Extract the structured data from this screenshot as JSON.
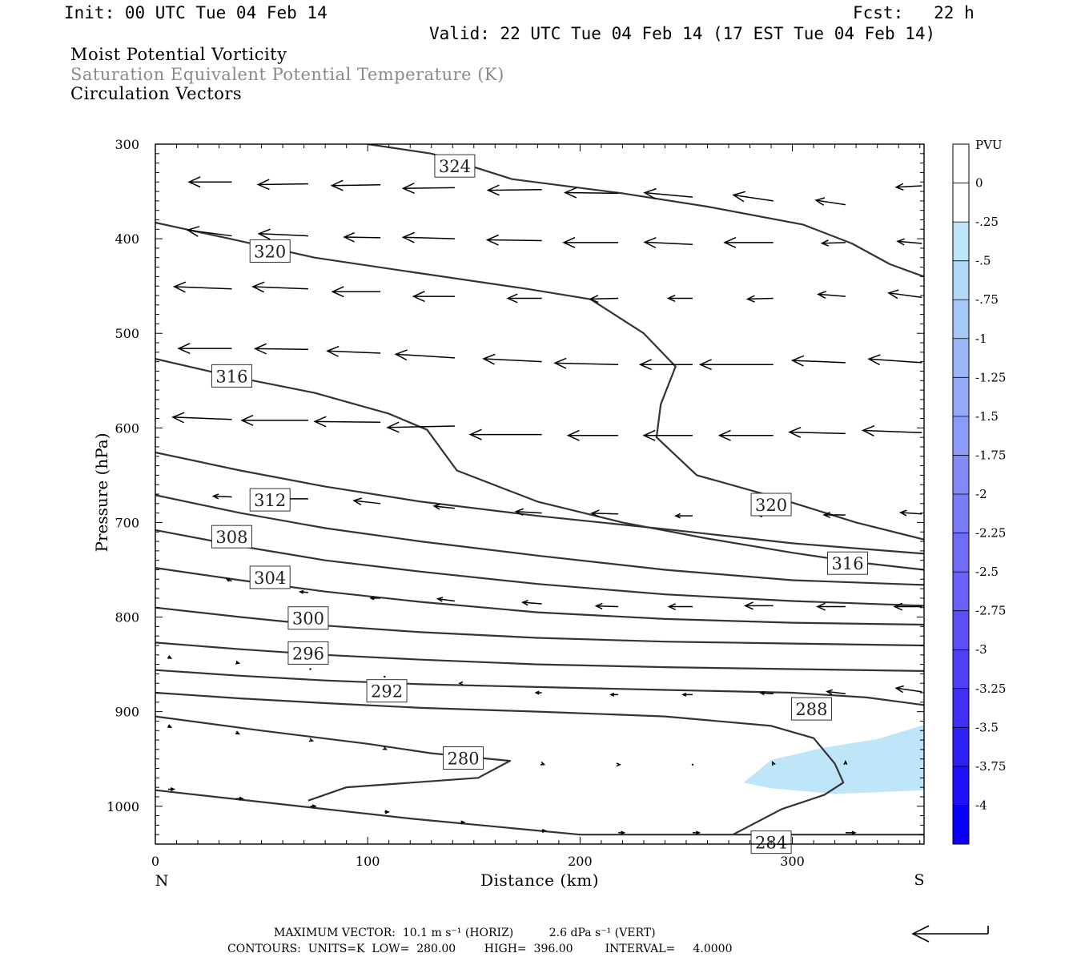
{
  "header": {
    "init": "Init: 00 UTC Tue 04 Feb 14",
    "fcst": "Fcst:   22 h",
    "valid": "Valid: 22 UTC Tue 04 Feb 14 (17 EST Tue 04 Feb 14)"
  },
  "titles": {
    "line1": "Moist Potential Vorticity",
    "line2": "Saturation Equivalent Potential Temperature (K)",
    "line3": "Circulation Vectors"
  },
  "footer": {
    "max_vector": "MAXIMUM VECTOR:  10.1 m s⁻¹ (HORIZ)          2.6 dPa s⁻¹ (VERT)",
    "contours": "CONTOURS:  UNITS=K  LOW=  280.00        HIGH=  396.00         INTERVAL=     4.0000"
  },
  "chart_data": {
    "type": "cross-section",
    "xlabel": "Distance (km)",
    "ylabel": "Pressure (hPa)",
    "x_ticks": [
      0,
      100,
      200,
      300
    ],
    "y_ticks": [
      300,
      400,
      500,
      600,
      700,
      800,
      900,
      1000
    ],
    "xlim": [
      0,
      362
    ],
    "ylim": [
      300,
      1040
    ],
    "y_axis": "pressure, increasing downward",
    "end_labels": {
      "left": "N",
      "right": "S"
    },
    "colorbar": {
      "title": "PVU",
      "labels": [
        "0",
        "-.25",
        "-.5",
        "-.75",
        "-1",
        "-1.25",
        "-1.5",
        "-1.75",
        "-2",
        "-2.25",
        "-2.5",
        "-2.75",
        "-3",
        "-3.25",
        "-3.5",
        "-3.75",
        "-4"
      ],
      "colors": [
        "#ffffff",
        "#bfe6f8",
        "#b1d8f8",
        "#a6c8f8",
        "#9cb8f8",
        "#94aaf8",
        "#8b9bf8",
        "#828af8",
        "#7a7cf8",
        "#716cf8",
        "#6860f8",
        "#5c50f8",
        "#4f40f8",
        "#4030f8",
        "#3020f8",
        "#2010f8",
        "#0a00f8"
      ]
    },
    "negative_pv_region": {
      "value_range_pvu": [
        -0.25,
        0
      ],
      "polygon": [
        [
          277,
          975
        ],
        [
          290,
          951
        ],
        [
          315,
          938
        ],
        [
          340,
          929
        ],
        [
          362,
          914
        ],
        [
          362,
          983
        ],
        [
          320,
          987
        ],
        [
          290,
          981
        ]
      ]
    },
    "contours": [
      {
        "label": "324",
        "points": [
          [
            100,
            300
          ],
          [
            130,
            310
          ],
          [
            168,
            337
          ],
          [
            220,
            352
          ],
          [
            260,
            366
          ],
          [
            305,
            385
          ],
          [
            328,
            405
          ],
          [
            346,
            427
          ],
          [
            362,
            440
          ]
        ]
      },
      {
        "label": "320",
        "points": [
          [
            0,
            383
          ],
          [
            35,
            400
          ],
          [
            75,
            420
          ],
          [
            120,
            435
          ],
          [
            175,
            453
          ],
          [
            205,
            464
          ],
          [
            230,
            500
          ],
          [
            245,
            535
          ],
          [
            238,
            575
          ],
          [
            236,
            610
          ],
          [
            255,
            650
          ],
          [
            290,
            672
          ],
          [
            330,
            700
          ],
          [
            362,
            718
          ]
        ]
      },
      {
        "label": "316",
        "points": [
          [
            0,
            527
          ],
          [
            35,
            545
          ],
          [
            75,
            563
          ],
          [
            110,
            585
          ],
          [
            128,
            602
          ],
          [
            142,
            645
          ],
          [
            180,
            678
          ],
          [
            220,
            700
          ],
          [
            260,
            717
          ],
          [
            300,
            732
          ],
          [
            330,
            742
          ],
          [
            362,
            750
          ]
        ]
      },
      {
        "label": "312",
        "points": [
          [
            0,
            626
          ],
          [
            40,
            645
          ],
          [
            80,
            662
          ],
          [
            125,
            678
          ],
          [
            180,
            693
          ],
          [
            240,
            707
          ],
          [
            300,
            722
          ],
          [
            362,
            733
          ]
        ]
      },
      {
        "label": "308",
        "points": [
          [
            0,
            671
          ],
          [
            40,
            690
          ],
          [
            80,
            706
          ],
          [
            125,
            720
          ],
          [
            180,
            735
          ],
          [
            240,
            750
          ],
          [
            300,
            761
          ],
          [
            362,
            766
          ]
        ]
      },
      {
        "label": "304",
        "points": [
          [
            0,
            708
          ],
          [
            40,
            725
          ],
          [
            80,
            740
          ],
          [
            125,
            752
          ],
          [
            180,
            765
          ],
          [
            240,
            776
          ],
          [
            300,
            783
          ],
          [
            362,
            788
          ]
        ]
      },
      {
        "label": "300",
        "points": [
          [
            0,
            748
          ],
          [
            40,
            761
          ],
          [
            80,
            773
          ],
          [
            125,
            784
          ],
          [
            180,
            795
          ],
          [
            240,
            802
          ],
          [
            300,
            806
          ],
          [
            362,
            808
          ]
        ]
      },
      {
        "label": "296",
        "points": [
          [
            0,
            790
          ],
          [
            40,
            800
          ],
          [
            80,
            809
          ],
          [
            125,
            816
          ],
          [
            180,
            822
          ],
          [
            240,
            826
          ],
          [
            300,
            828
          ],
          [
            362,
            830
          ]
        ]
      },
      {
        "label": "292",
        "points": [
          [
            0,
            827
          ],
          [
            40,
            834
          ],
          [
            80,
            840
          ],
          [
            125,
            845
          ],
          [
            180,
            850
          ],
          [
            240,
            853
          ],
          [
            300,
            855
          ],
          [
            362,
            857
          ]
        ]
      },
      {
        "label": "288",
        "points": [
          [
            0,
            856
          ],
          [
            40,
            862
          ],
          [
            80,
            867
          ],
          [
            125,
            871
          ],
          [
            180,
            874
          ],
          [
            240,
            877
          ],
          [
            300,
            880
          ],
          [
            335,
            885
          ],
          [
            362,
            893
          ]
        ]
      },
      {
        "label": "284",
        "points": [
          [
            0,
            880
          ],
          [
            40,
            886
          ],
          [
            80,
            891
          ],
          [
            125,
            896
          ],
          [
            180,
            900
          ],
          [
            240,
            905
          ],
          [
            290,
            915
          ],
          [
            310,
            928
          ],
          [
            320,
            955
          ],
          [
            324,
            975
          ],
          [
            315,
            988
          ],
          [
            295,
            1003
          ],
          [
            272,
            1030
          ]
        ]
      },
      {
        "label": "280",
        "points": [
          [
            0,
            905
          ],
          [
            50,
            920
          ],
          [
            100,
            934
          ],
          [
            130,
            944
          ],
          [
            167,
            952
          ],
          [
            152,
            970
          ],
          [
            90,
            980
          ],
          [
            72,
            994
          ]
        ]
      },
      {
        "label": "",
        "points": [
          [
            0,
            983
          ],
          [
            60,
            998
          ],
          [
            120,
            1013
          ],
          [
            200,
            1030
          ],
          [
            362,
            1030
          ]
        ]
      }
    ],
    "contour_labels": [
      {
        "text": "324",
        "x": 141,
        "p": 323
      },
      {
        "text": "320",
        "x": 54,
        "p": 413
      },
      {
        "text": "320",
        "x": 290,
        "p": 681
      },
      {
        "text": "316",
        "x": 36,
        "p": 545
      },
      {
        "text": "316",
        "x": 326,
        "p": 743
      },
      {
        "text": "312",
        "x": 54,
        "p": 676
      },
      {
        "text": "308",
        "x": 36,
        "p": 715
      },
      {
        "text": "304",
        "x": 54,
        "p": 758
      },
      {
        "text": "300",
        "x": 72,
        "p": 801
      },
      {
        "text": "296",
        "x": 72,
        "p": 838
      },
      {
        "text": "292",
        "x": 109,
        "p": 878
      },
      {
        "text": "288",
        "x": 309,
        "p": 897
      },
      {
        "text": "284",
        "x": 290,
        "p": 1038
      },
      {
        "text": "280",
        "x": 145,
        "p": 949
      }
    ],
    "vectors": [
      {
        "x": 36,
        "p": 340,
        "u": -5.8,
        "w": 0
      },
      {
        "x": 72,
        "p": 342,
        "u": -6.8,
        "w": -0.1
      },
      {
        "x": 106,
        "p": 343,
        "u": -6.6,
        "w": -0.1
      },
      {
        "x": 141,
        "p": 346,
        "u": -7.0,
        "w": -0.1
      },
      {
        "x": 182,
        "p": 348,
        "u": -7.3,
        "w": -0.1
      },
      {
        "x": 218,
        "p": 352,
        "u": -7.2,
        "w": 0.1
      },
      {
        "x": 253,
        "p": 356,
        "u": -6.5,
        "w": 0.6
      },
      {
        "x": 291,
        "p": 360,
        "u": -5.4,
        "w": 0.8
      },
      {
        "x": 325,
        "p": 364,
        "u": -4.0,
        "w": 0.6
      },
      {
        "x": 361,
        "p": 344,
        "u": -3.5,
        "w": -0.2
      },
      {
        "x": 36,
        "p": 397,
        "u": -6.0,
        "w": 0.8
      },
      {
        "x": 72,
        "p": 397,
        "u": -6.7,
        "w": 0.3
      },
      {
        "x": 106,
        "p": 399,
        "u": -4.9,
        "w": 0.1
      },
      {
        "x": 141,
        "p": 400,
        "u": -7.0,
        "w": 0.2
      },
      {
        "x": 182,
        "p": 402,
        "u": -7.4,
        "w": 0.1
      },
      {
        "x": 218,
        "p": 404,
        "u": -7.4,
        "w": 0
      },
      {
        "x": 253,
        "p": 406,
        "u": -6.5,
        "w": 0.3
      },
      {
        "x": 291,
        "p": 404,
        "u": -6.6,
        "w": 0
      },
      {
        "x": 325,
        "p": 404,
        "u": -3.2,
        "w": -0.1
      },
      {
        "x": 361,
        "p": 405,
        "u": -3.3,
        "w": 0.3
      },
      {
        "x": 36,
        "p": 453,
        "u": -7.8,
        "w": 0.3
      },
      {
        "x": 72,
        "p": 453,
        "u": -7.5,
        "w": 0.3
      },
      {
        "x": 106,
        "p": 456,
        "u": -6.5,
        "w": 0
      },
      {
        "x": 141,
        "p": 461,
        "u": -5.6,
        "w": 0
      },
      {
        "x": 182,
        "p": 463,
        "u": -4.6,
        "w": 0
      },
      {
        "x": 218,
        "p": 463,
        "u": -3.8,
        "w": -0.1
      },
      {
        "x": 253,
        "p": 463,
        "u": -3.3,
        "w": 0
      },
      {
        "x": 291,
        "p": 463,
        "u": -3.5,
        "w": -0.1
      },
      {
        "x": 325,
        "p": 461,
        "u": -3.7,
        "w": 0.3
      },
      {
        "x": 361,
        "p": 462,
        "u": -4.5,
        "w": 0.6
      },
      {
        "x": 36,
        "p": 516,
        "u": -7.2,
        "w": 0
      },
      {
        "x": 72,
        "p": 517,
        "u": -7.2,
        "w": 0.1
      },
      {
        "x": 106,
        "p": 521,
        "u": -7.2,
        "w": 0.3
      },
      {
        "x": 141,
        "p": 526,
        "u": -8.0,
        "w": 0.5
      },
      {
        "x": 182,
        "p": 530,
        "u": -7.9,
        "w": 0.4
      },
      {
        "x": 218,
        "p": 533,
        "u": -8.6,
        "w": 0.2
      },
      {
        "x": 253,
        "p": 533,
        "u": -7.1,
        "w": 0
      },
      {
        "x": 291,
        "p": 533,
        "u": -9.9,
        "w": 0
      },
      {
        "x": 325,
        "p": 531,
        "u": -7.2,
        "w": 0.3
      },
      {
        "x": 361,
        "p": 531,
        "u": -7.2,
        "w": 0.5
      },
      {
        "x": 36,
        "p": 591,
        "u": -8.0,
        "w": 0.3
      },
      {
        "x": 72,
        "p": 592,
        "u": -9.0,
        "w": 0
      },
      {
        "x": 106,
        "p": 594,
        "u": -8.9,
        "w": 0.1
      },
      {
        "x": 141,
        "p": 598,
        "u": -9.1,
        "w": -0.2
      },
      {
        "x": 182,
        "p": 607,
        "u": -9.7,
        "w": 0
      },
      {
        "x": 218,
        "p": 608,
        "u": -6.8,
        "w": 0
      },
      {
        "x": 253,
        "p": 608,
        "u": -6.6,
        "w": 0
      },
      {
        "x": 291,
        "p": 608,
        "u": -7.3,
        "w": 0
      },
      {
        "x": 325,
        "p": 606,
        "u": -7.6,
        "w": 0.2
      },
      {
        "x": 361,
        "p": 605,
        "u": -8.0,
        "w": 0.3
      },
      {
        "x": 36,
        "p": 673,
        "u": -2.5,
        "w": 0.1
      },
      {
        "x": 72,
        "p": 675,
        "u": -5.2,
        "w": 0
      },
      {
        "x": 106,
        "p": 680,
        "u": -3.6,
        "w": 0.4
      },
      {
        "x": 141,
        "p": 685,
        "u": -2.8,
        "w": 0.3
      },
      {
        "x": 182,
        "p": 690,
        "u": -3.5,
        "w": 0.2
      },
      {
        "x": 218,
        "p": 691,
        "u": -3.6,
        "w": 0.1
      },
      {
        "x": 253,
        "p": 693,
        "u": -2.3,
        "w": 0
      },
      {
        "x": 291,
        "p": 692,
        "u": -2.1,
        "w": 0
      },
      {
        "x": 325,
        "p": 692,
        "u": -2.9,
        "w": 0
      },
      {
        "x": 361,
        "p": 691,
        "u": -2.9,
        "w": 0.2
      },
      {
        "x": 36,
        "p": 762,
        "u": -0.7,
        "w": 0.3
      },
      {
        "x": 72,
        "p": 774,
        "u": -1.1,
        "w": 0.1
      },
      {
        "x": 106,
        "p": 780,
        "u": -1.3,
        "w": 0
      },
      {
        "x": 141,
        "p": 783,
        "u": -2.3,
        "w": 0.3
      },
      {
        "x": 182,
        "p": 786,
        "u": -2.6,
        "w": 0.2
      },
      {
        "x": 218,
        "p": 789,
        "u": -3.0,
        "w": 0.1
      },
      {
        "x": 253,
        "p": 789,
        "u": -3.2,
        "w": 0
      },
      {
        "x": 291,
        "p": 788,
        "u": -3.8,
        "w": 0
      },
      {
        "x": 325,
        "p": 789,
        "u": -3.8,
        "w": 0
      },
      {
        "x": 361,
        "p": 789,
        "u": -3.7,
        "w": 0
      },
      {
        "x": 6,
        "p": 842,
        "u": 0.4,
        "w": -0.2
      },
      {
        "x": 38,
        "p": 848,
        "u": 0.4,
        "w": -0.1
      },
      {
        "x": 73,
        "p": 855,
        "u": 0.1,
        "w": 0
      },
      {
        "x": 108,
        "p": 863,
        "u": -0.1,
        "w": 0
      },
      {
        "x": 144,
        "p": 870,
        "u": -0.2,
        "w": 0
      },
      {
        "x": 182,
        "p": 880,
        "u": -0.8,
        "w": 0
      },
      {
        "x": 218,
        "p": 882,
        "u": -1.0,
        "w": 0
      },
      {
        "x": 253,
        "p": 882,
        "u": -1.3,
        "w": 0
      },
      {
        "x": 291,
        "p": 881,
        "u": -1.7,
        "w": 0.1
      },
      {
        "x": 325,
        "p": 881,
        "u": -2.5,
        "w": 0.3
      },
      {
        "x": 361,
        "p": 879,
        "u": -3.5,
        "w": 0.5
      },
      {
        "x": 6,
        "p": 915,
        "u": 0.4,
        "w": -0.2
      },
      {
        "x": 38,
        "p": 922,
        "u": 0.4,
        "w": -0.2
      },
      {
        "x": 73,
        "p": 930,
        "u": 0.3,
        "w": -0.1
      },
      {
        "x": 108,
        "p": 939,
        "u": 0.2,
        "w": -0.1
      },
      {
        "x": 144,
        "p": 948,
        "u": 0.3,
        "w": 0
      },
      {
        "x": 182,
        "p": 955,
        "u": 0.3,
        "w": -0.1
      },
      {
        "x": 218,
        "p": 956,
        "u": 0.2,
        "w": 0
      },
      {
        "x": 253,
        "p": 956,
        "u": 0,
        "w": 0
      },
      {
        "x": 291,
        "p": 955,
        "u": -0.1,
        "w": 0.2
      },
      {
        "x": 325,
        "p": 955,
        "u": 0,
        "w": 0.3
      },
      {
        "x": 6,
        "p": 982,
        "u": 0.8,
        "w": 0
      },
      {
        "x": 38,
        "p": 992,
        "u": 0.9,
        "w": 0
      },
      {
        "x": 73,
        "p": 1000,
        "u": 0.7,
        "w": 0
      },
      {
        "x": 108,
        "p": 1006,
        "u": 0.5,
        "w": 0
      },
      {
        "x": 144,
        "p": 1017,
        "u": 0.4,
        "w": 0
      },
      {
        "x": 182,
        "p": 1026,
        "u": 0.5,
        "w": 0
      },
      {
        "x": 218,
        "p": 1028,
        "u": 0.8,
        "w": 0
      },
      {
        "x": 253,
        "p": 1028,
        "u": 0.9,
        "w": 0
      },
      {
        "x": 291,
        "p": 1028,
        "u": 0.9,
        "w": 0
      },
      {
        "x": 325,
        "p": 1028,
        "u": 1.3,
        "w": 0
      }
    ]
  }
}
